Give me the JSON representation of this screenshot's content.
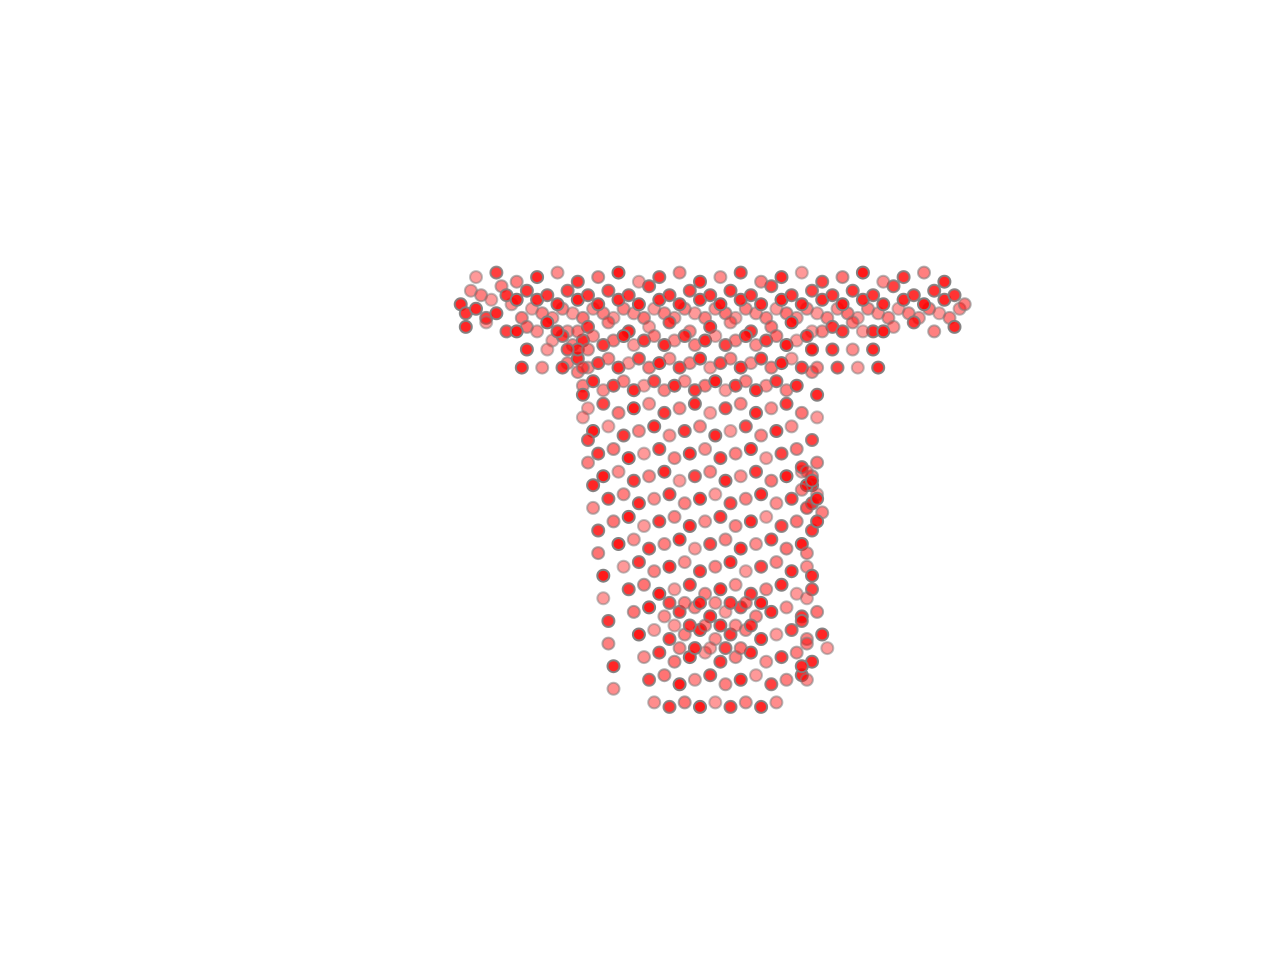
{
  "chart_data": {
    "type": "scatter",
    "title": "",
    "xlabel": "",
    "ylabel": "",
    "axes_visible": false,
    "grid": false,
    "point_fill": "#ff0000",
    "point_edge": "#808080",
    "x": [
      -4.7,
      -4.5,
      -4.6,
      -4.3,
      -4.4,
      -4.1,
      -4.2,
      -3.9,
      -4,
      -3.7,
      -3.8,
      -3.5,
      -3.6,
      -3.3,
      -3.4,
      -3.1,
      -3.2,
      -2.9,
      -3,
      -2.7,
      -2.8,
      -2.5,
      -2.6,
      -2.3,
      -2.4,
      -2.1,
      -2.2,
      -1.9,
      -2,
      -1.7,
      -1.8,
      -1.5,
      -1.6,
      -1.3,
      -1.4,
      -1.1,
      -1.2,
      -0.9,
      -1,
      -0.7,
      -0.8,
      -0.5,
      -0.6,
      -0.3,
      -0.4,
      -0.1,
      -0.2,
      0.1,
      0,
      0.3,
      0.2,
      0.5,
      0.4,
      0.7,
      0.6,
      0.9,
      0.8,
      1.1,
      1,
      1.3,
      1.2,
      1.5,
      1.4,
      1.7,
      1.6,
      1.9,
      1.8,
      2.1,
      2,
      2.3,
      2.2,
      2.5,
      2.4,
      2.7,
      2.6,
      2.9,
      2.8,
      3.1,
      3,
      3.3,
      3.2,
      3.5,
      3.4,
      3.7,
      3.6,
      3.9,
      3.8,
      4.1,
      4,
      4.3,
      4.2,
      4.5,
      4.4,
      4.7,
      4.6,
      4.9,
      4.8,
      5.1,
      5,
      5.2,
      -4.6,
      -4.2,
      -3.8,
      -3.4,
      -3,
      -2.6,
      -2.2,
      -1.8,
      -1.4,
      -1,
      -0.6,
      -0.2,
      0.2,
      0.6,
      1,
      1.4,
      1.8,
      2.2,
      2.6,
      3,
      3.4,
      3.8,
      4.2,
      4.6,
      5,
      -4.4,
      -4,
      -3.6,
      -3.2,
      -2.8,
      -2.4,
      -2,
      -1.6,
      -1.2,
      -0.8,
      -0.4,
      0,
      0.4,
      0.8,
      1.2,
      1.6,
      2,
      2.4,
      2.8,
      3.2,
      3.6,
      4,
      4.4,
      4.8,
      -2.9,
      -2.7,
      -2.5,
      -2.3,
      -2.1,
      -1.9,
      -1.7,
      -1.5,
      -1.3,
      -1.1,
      -0.9,
      -0.7,
      -0.5,
      -0.3,
      -0.1,
      0.1,
      0.3,
      0.5,
      0.7,
      0.9,
      1.1,
      1.3,
      1.5,
      1.7,
      1.9,
      2.1,
      -2.6,
      -2.4,
      -2.2,
      -2,
      -1.8,
      -1.6,
      -1.4,
      -1.2,
      -1,
      -0.8,
      -0.6,
      -0.4,
      -0.2,
      0,
      0.2,
      0.4,
      0.6,
      0.8,
      1,
      1.2,
      1.4,
      1.6,
      1.8,
      2,
      -2.3,
      -2.1,
      -1.9,
      -1.7,
      -1.5,
      -1.3,
      -1.1,
      -0.9,
      -0.7,
      -0.5,
      -0.3,
      -0.1,
      0.1,
      0.3,
      0.5,
      0.7,
      0.9,
      1.1,
      1.3,
      1.5,
      1.7,
      1.9,
      -2.2,
      -1.9,
      -1.6,
      -1.3,
      -1,
      -0.7,
      -0.4,
      -0.1,
      0.2,
      0.5,
      0.8,
      1.1,
      1.4,
      1.7,
      2,
      -2.1,
      -1.8,
      -1.5,
      -1.2,
      -0.9,
      -0.6,
      -0.3,
      0,
      0.3,
      0.6,
      0.9,
      1.2,
      1.5,
      1.8,
      -2,
      -1.7,
      -1.4,
      -1.1,
      -0.8,
      -0.5,
      -0.2,
      0.1,
      0.4,
      0.7,
      1,
      1.3,
      1.6,
      1.9,
      -1.9,
      -1.6,
      -1.3,
      -1,
      -0.7,
      -0.4,
      -0.1,
      0.2,
      0.5,
      0.8,
      1.1,
      1.4,
      1.7,
      2,
      -1.8,
      -1.5,
      -1.2,
      -0.9,
      -0.6,
      -0.3,
      0,
      0.3,
      0.6,
      0.9,
      1.2,
      1.5,
      1.8,
      -1.7,
      -1.4,
      -1.1,
      -0.8,
      -0.5,
      -0.2,
      0.1,
      0.4,
      0.7,
      1,
      1.3,
      1.6,
      1.9,
      -1.6,
      -1.3,
      -1,
      -0.7,
      -0.4,
      -0.1,
      0.2,
      0.5,
      0.8,
      1.1,
      1.4,
      1.7,
      2,
      -1.5,
      -1.2,
      -0.9,
      -0.6,
      -0.3,
      0,
      0.3,
      0.6,
      0.9,
      1.2,
      1.5,
      1.8,
      2.1,
      -1.4,
      -1.1,
      -0.8,
      -0.5,
      -0.2,
      0.1,
      0.4,
      0.7,
      1,
      1.3,
      1.6,
      1.9,
      2.2,
      -1.3,
      -1,
      -0.7,
      -0.4,
      -0.1,
      0.2,
      0.5,
      0.8,
      1.1,
      1.4,
      1.7,
      2,
      2.3,
      -1.2,
      -0.9,
      -0.6,
      -0.3,
      0,
      0.3,
      0.6,
      0.9,
      1.2,
      1.5,
      1.8,
      2.1,
      2.4,
      -1.1,
      -0.8,
      -0.5,
      -0.2,
      0.1,
      0.4,
      0.7,
      1,
      1.3,
      1.6,
      1.9,
      2.2,
      2.5,
      -1,
      -0.7,
      -0.4,
      -0.1,
      0.2,
      0.5,
      0.8,
      1.1,
      1.4,
      1.7,
      2,
      -0.9,
      -0.6,
      -0.3,
      0,
      0.3,
      0.6,
      0.9,
      1.2,
      1.5,
      -2.4,
      -2.4,
      -2.3,
      -2.3,
      -2.2,
      -2.2,
      -2.1,
      -2.1,
      -2,
      -2,
      -1.9,
      -1.9,
      -1.8,
      -1.8,
      -1.7,
      -1.7,
      2.2,
      2.2,
      2.3,
      2.3,
      2.2,
      2.3,
      2.2,
      2.1,
      2.2,
      2.1,
      2.2,
      2.1,
      2,
      2.1,
      2,
      2.1,
      2,
      2.2,
      2.1,
      2.3,
      2.2,
      2.4,
      2.3,
      2.1,
      2.2,
      2.0,
      2.3,
      2.1,
      -0.6,
      -0.3,
      0,
      0.3,
      0.6,
      0.9,
      1.2,
      -0.5,
      -0.2,
      0.1,
      0.4,
      0.7,
      1,
      -0.4,
      -0.1,
      0.2,
      0.5,
      0.8,
      -3.6,
      -3.2,
      -2.8,
      -2.4,
      -3.4,
      -3,
      -2.6,
      -2.2,
      -3.5,
      -3.1,
      -2.7,
      -2.3,
      3.6,
      3.2,
      2.8,
      2.4,
      3.4,
      3,
      2.6,
      2.2,
      3.5,
      3.1,
      2.7,
      2.3
    ],
    "y": [
      4.8,
      5.1,
      4.6,
      5,
      4.7,
      4.9,
      4.5,
      5.2,
      4.6,
      4.8,
      5,
      4.5,
      4.9,
      4.7,
      5.1,
      4.6,
      4.9,
      4.5,
      5,
      4.7,
      4.8,
      4.6,
      5.1,
      4.5,
      4.9,
      4.7,
      5,
      4.6,
      4.8,
      4.5,
      5.1,
      4.7,
      4.9,
      4.6,
      5,
      4.5,
      4.8,
      4.7,
      5.2,
      4.6,
      4.9,
      4.5,
      5,
      4.7,
      4.8,
      4.6,
      5.1,
      4.5,
      4.9,
      4.7,
      5,
      4.6,
      4.8,
      4.5,
      5.1,
      4.7,
      4.9,
      4.6,
      5,
      4.5,
      4.8,
      4.7,
      5.2,
      4.6,
      4.9,
      4.5,
      5,
      4.7,
      4.8,
      4.6,
      5.1,
      4.5,
      4.9,
      4.7,
      5,
      4.6,
      4.8,
      4.5,
      5.1,
      4.7,
      4.9,
      4.6,
      5,
      4.5,
      4.8,
      4.7,
      5.2,
      4.6,
      4.9,
      4.5,
      5,
      4.7,
      4.8,
      4.6,
      5.1,
      4.5,
      4.9,
      4.7,
      5,
      4.8,
      4.3,
      4.4,
      4.2,
      4.3,
      4.4,
      4.2,
      4.3,
      4.4,
      4.2,
      4.3,
      4.4,
      4.2,
      4.3,
      4.4,
      4.2,
      4.3,
      4.4,
      4.2,
      4.3,
      4.4,
      4.2,
      4.3,
      4.4,
      4.2,
      4.3,
      5.4,
      5.5,
      5.3,
      5.4,
      5.5,
      5.3,
      5.4,
      5.5,
      5.3,
      5.4,
      5.5,
      5.3,
      5.4,
      5.5,
      5.3,
      5.4,
      5.5,
      5.3,
      5.4,
      5.5,
      5.3,
      5.4,
      5.5,
      5.3,
      4,
      4.1,
      3.9,
      4,
      4.1,
      3.9,
      4,
      4.1,
      3.9,
      4,
      4.1,
      3.9,
      4,
      4.1,
      3.9,
      4,
      4.1,
      3.9,
      4,
      4.1,
      3.9,
      4,
      4.1,
      3.9,
      4,
      4.1,
      3.5,
      3.6,
      3.4,
      3.5,
      3.6,
      3.4,
      3.5,
      3.6,
      3.4,
      3.5,
      3.6,
      3.4,
      3.5,
      3.6,
      3.4,
      3.5,
      3.6,
      3.4,
      3.5,
      3.6,
      3.4,
      3.5,
      3.6,
      3.4,
      3,
      3.1,
      2.9,
      3,
      3.1,
      2.9,
      3,
      3.1,
      2.9,
      3,
      3.1,
      2.9,
      3,
      3.1,
      2.9,
      3,
      3.1,
      2.9,
      3,
      3.1,
      2.9,
      3,
      2.5,
      2.6,
      2.4,
      2.5,
      2.6,
      2.4,
      2.5,
      2.6,
      2.4,
      2.5,
      2.6,
      2.4,
      2.5,
      2.6,
      2.4,
      2,
      2.1,
      1.9,
      2,
      2.1,
      1.9,
      2,
      2.1,
      1.9,
      2,
      2.1,
      1.9,
      2,
      2.1,
      1.5,
      1.6,
      1.4,
      1.5,
      1.6,
      1.4,
      1.5,
      1.6,
      1.4,
      1.5,
      1.6,
      1.4,
      1.5,
      1.6,
      1,
      1.1,
      0.9,
      1,
      1.1,
      0.9,
      1,
      1.1,
      0.9,
      1,
      1.1,
      0.9,
      1,
      1.1,
      0.5,
      0.6,
      0.4,
      0.5,
      0.6,
      0.4,
      0.5,
      0.6,
      0.4,
      0.5,
      0.6,
      0.4,
      0.5,
      0,
      0.1,
      -0.1,
      0,
      0.1,
      -0.1,
      0,
      0.1,
      -0.1,
      0,
      0.1,
      -0.1,
      0,
      -0.5,
      -0.4,
      -0.6,
      -0.5,
      -0.4,
      -0.6,
      -0.5,
      -0.4,
      -0.6,
      -0.5,
      -0.4,
      -0.6,
      -0.5,
      -1,
      -0.9,
      -1.1,
      -1,
      -0.9,
      -1.1,
      -1,
      -0.9,
      -1.1,
      -1,
      -0.9,
      -1.1,
      -1,
      -1.5,
      -1.4,
      -1.6,
      -1.5,
      -1.4,
      -1.6,
      -1.5,
      -1.4,
      -1.6,
      -1.5,
      -1.4,
      -1.6,
      -1.5,
      -2,
      -1.9,
      -2.1,
      -2,
      -1.9,
      -2.1,
      -2,
      -1.9,
      -2.1,
      -2,
      -1.9,
      -2.1,
      -2,
      -2.5,
      -2.4,
      -2.6,
      -2.5,
      -2.4,
      -2.6,
      -2.5,
      -2.4,
      -2.6,
      -2.5,
      -2.4,
      -2.6,
      -2.5,
      -3,
      -2.9,
      -3.1,
      -3,
      -2.9,
      -3.1,
      -3,
      -2.9,
      -3.1,
      -3,
      -2.9,
      -3.1,
      -2.8,
      -3.5,
      -3.4,
      -3.6,
      -3.5,
      -3.4,
      -3.6,
      -3.5,
      -3.4,
      -3.6,
      -3.5,
      -3.4,
      -4,
      -4.1,
      -4,
      -4.1,
      -4,
      -4.1,
      -4,
      -4.1,
      -4,
      3.8,
      3.3,
      2.8,
      2.3,
      1.8,
      1.3,
      0.8,
      0.3,
      -0.2,
      -0.7,
      -1.2,
      -1.7,
      -2.2,
      -2.7,
      -3.2,
      -3.7,
      3.8,
      3.3,
      2.8,
      2.3,
      1.8,
      1.3,
      0.8,
      0.3,
      -0.2,
      -0.7,
      -1.2,
      -1.7,
      -2.2,
      -2.7,
      -3.2,
      -3.5,
      1.2,
      1.0,
      0.8,
      0.6,
      0.4,
      0.2,
      0.0,
      1.1,
      0.9,
      0.7,
      0.5,
      0.3,
      -1.8,
      -1.8,
      -1.8,
      -1.8,
      -1.8,
      -1.8,
      -1.8,
      -2.3,
      -2.3,
      -2.3,
      -2.3,
      -2.3,
      -2.3,
      -2.8,
      -2.8,
      -2.8,
      -2.8,
      -2.8,
      4.2,
      4.2,
      4.2,
      4.2,
      3.8,
      3.8,
      3.8,
      3.8,
      3.4,
      3.4,
      3.4,
      3.4,
      4.2,
      4.2,
      4.2,
      4.2,
      3.8,
      3.8,
      3.8,
      3.8,
      3.4,
      3.4,
      3.4,
      3.4
    ],
    "alpha": [
      0.85,
      0.45,
      0.8,
      0.5,
      0.85,
      0.4,
      0.75,
      0.5,
      0.85,
      0.45,
      0.8,
      0.55,
      0.9,
      0.4,
      0.8,
      0.5,
      0.85,
      0.45,
      0.8,
      0.5,
      0.85,
      0.4,
      0.75,
      0.55,
      0.9,
      0.45,
      0.8,
      0.5,
      0.85,
      0.4,
      0.75,
      0.5,
      0.85,
      0.45,
      0.8,
      0.55,
      0.9,
      0.4,
      0.8,
      0.5
    ]
  }
}
